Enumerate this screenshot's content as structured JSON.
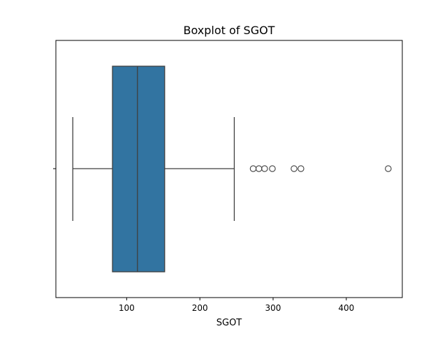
{
  "chart_data": {
    "type": "boxplot",
    "title": "Boxplot of SGOT",
    "xlabel": "SGOT",
    "ylabel": "",
    "orientation": "horizontal",
    "xlim": [
      3.3,
      476.5
    ],
    "xticks": [
      100,
      200,
      300,
      400
    ],
    "xtick_labels": [
      "100",
      "200",
      "300",
      "400"
    ],
    "grid": false,
    "series": [
      {
        "whisker_low": 26.4,
        "q1": 80.6,
        "median": 114.7,
        "q3": 151.9,
        "whisker_high": 247.0,
        "outliers": [
          272.8,
          280.6,
          288.4,
          299.0,
          328.6,
          338.0,
          457.3
        ]
      }
    ],
    "colors": {
      "box_fill": "#3274a1",
      "line": "#3f3f3f",
      "axis": "#000000"
    }
  }
}
